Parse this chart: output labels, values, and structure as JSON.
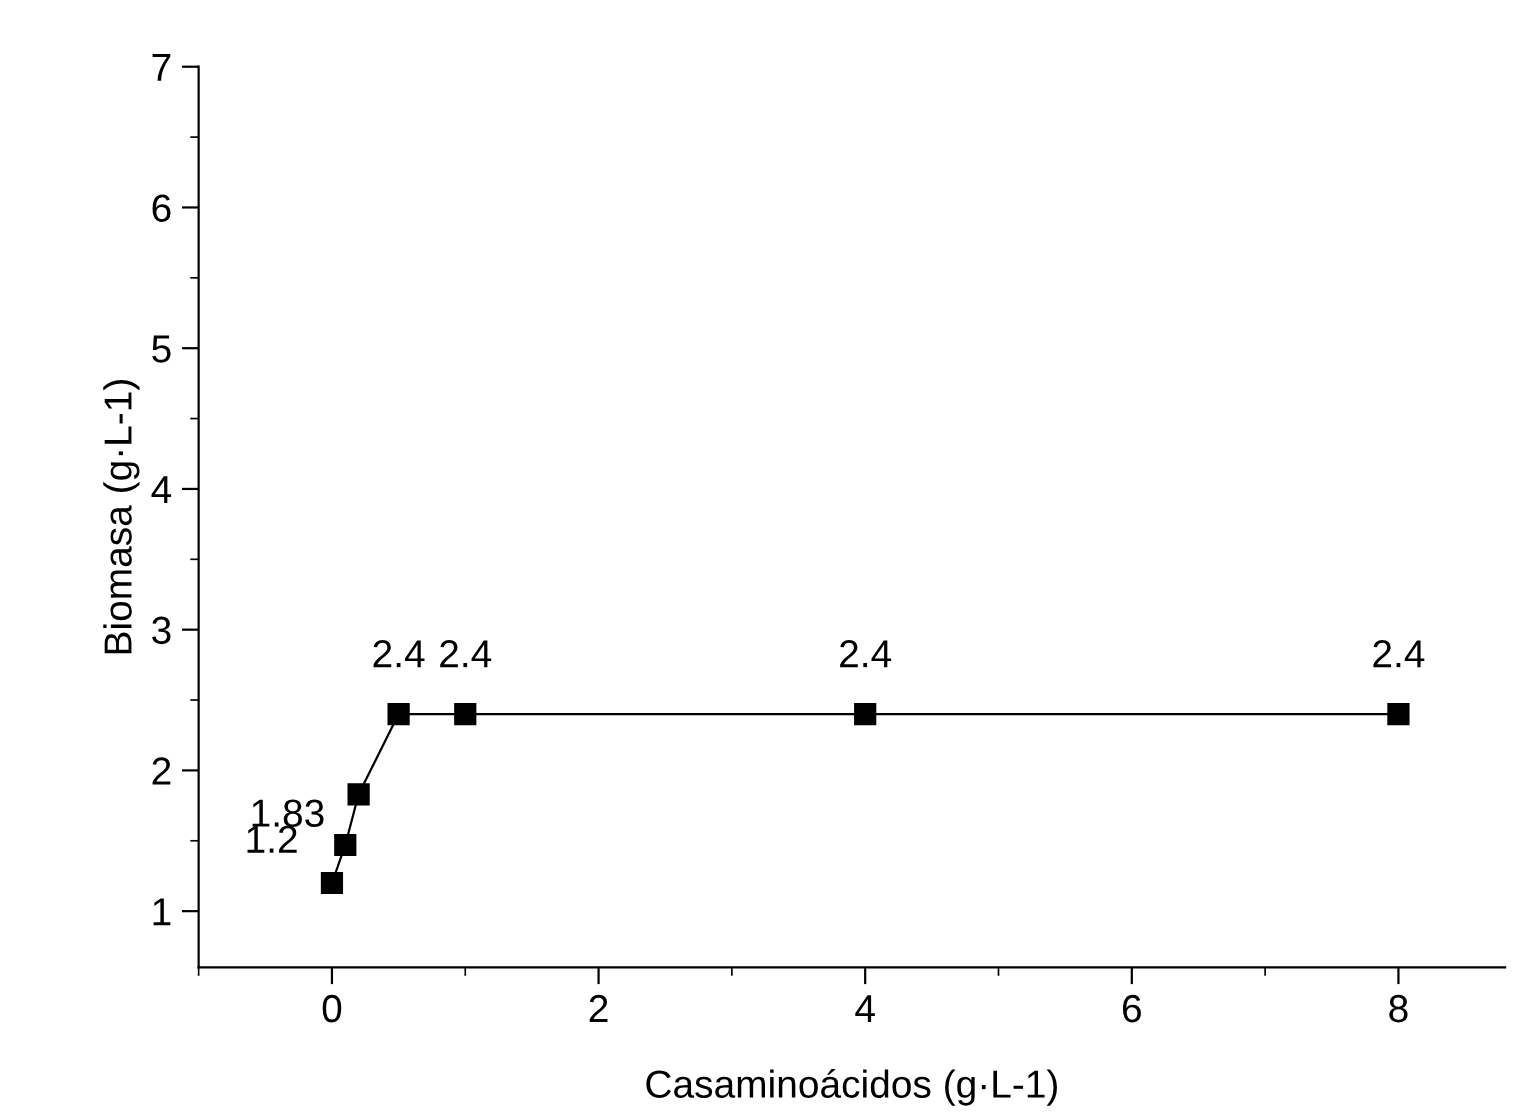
{
  "chart_data": {
    "type": "line",
    "xlabel": "Casaminoácidos (g·L-1)",
    "ylabel": "Biomasa (g·L-1)",
    "x": [
      0,
      0.1,
      0.2,
      0.5,
      1,
      4,
      8
    ],
    "series": [
      {
        "color": "#000000",
        "values": [
          1.2,
          1.47,
          1.83,
          2.4,
          2.4,
          2.4,
          2.4
        ],
        "value_labels": [
          "1.2",
          null,
          "1.83",
          "2.4",
          "2.4",
          "2.4",
          "2.4"
        ]
      }
    ],
    "xlim": [
      -1,
      8.8
    ],
    "xticks": [
      0,
      2,
      4,
      6,
      8
    ],
    "ylim": [
      0.6,
      7
    ],
    "yticks": [
      1,
      2,
      3,
      4,
      5,
      6,
      7
    ],
    "marker": "square",
    "line_style": "solid",
    "grid": false,
    "legend": false
  }
}
